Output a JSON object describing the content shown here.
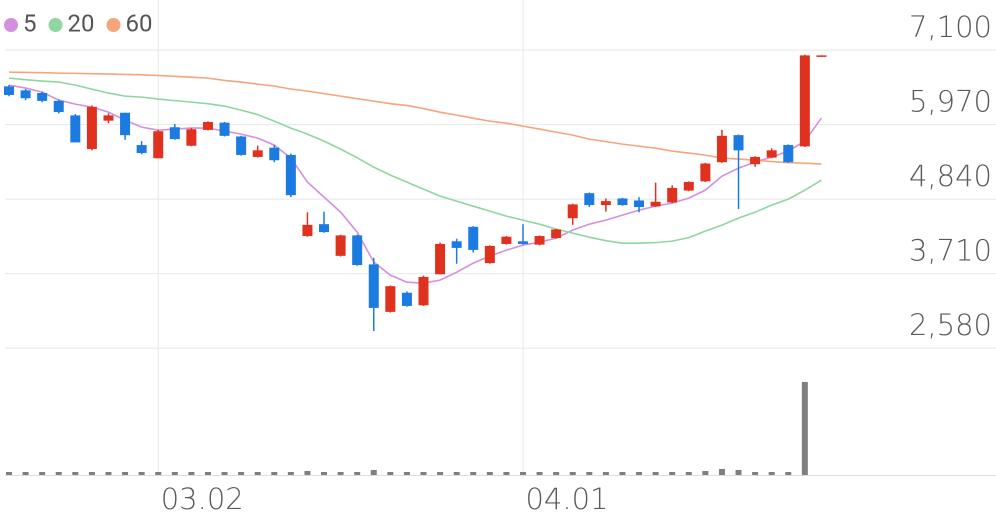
{
  "chart_data": {
    "type": "candlestick",
    "categories": [
      null,
      null,
      null,
      null,
      null,
      null,
      null,
      null,
      null,
      "03.02",
      null,
      null,
      null,
      null,
      null,
      null,
      null,
      null,
      null,
      null,
      null,
      null,
      null,
      null,
      null,
      null,
      null,
      null,
      null,
      null,
      null,
      "04.01",
      null,
      null,
      null,
      null,
      null,
      null,
      null,
      null,
      null,
      null,
      null,
      null,
      null,
      null,
      null,
      null,
      null,
      null
    ],
    "open": [
      6550,
      6490,
      6450,
      6330,
      6110,
      5600,
      6030,
      6150,
      5660,
      5460,
      5930,
      5650,
      5890,
      6000,
      5790,
      5480,
      5620,
      5510,
      4280,
      4460,
      3980,
      4290,
      3850,
      3130,
      3420,
      3230,
      3700,
      4200,
      4420,
      3870,
      4160,
      4200,
      4150,
      4250,
      4550,
      4930,
      4750,
      4850,
      4820,
      4730,
      4790,
      4970,
      5110,
      5400,
      5810,
      5370,
      5470,
      5660,
      5640,
      7010
    ],
    "high": [
      6570,
      6510,
      6470,
      6350,
      6130,
      6260,
      6140,
      6150,
      5720,
      5890,
      5980,
      5920,
      6020,
      6010,
      5800,
      5650,
      5660,
      5530,
      4640,
      4650,
      4300,
      4300,
      3950,
      3530,
      3440,
      3680,
      4180,
      4240,
      4430,
      4140,
      4280,
      4460,
      4290,
      4390,
      4770,
      4940,
      4850,
      4860,
      4870,
      5090,
      5050,
      5110,
      5390,
      5890,
      5820,
      5490,
      5610,
      5670,
      7030,
      7020
    ],
    "low": [
      6400,
      6340,
      6310,
      6140,
      5700,
      5580,
      5990,
      5740,
      5520,
      5460,
      5740,
      5640,
      5880,
      5790,
      5500,
      5470,
      5400,
      4870,
      4270,
      4330,
      3970,
      3830,
      2840,
      3120,
      3210,
      3220,
      3700,
      3860,
      4030,
      3860,
      4150,
      4150,
      4140,
      4240,
      4450,
      4720,
      4650,
      4740,
      4640,
      4720,
      4780,
      4960,
      5100,
      5390,
      4690,
      5330,
      5460,
      5390,
      5630,
      7000
    ],
    "close": [
      6420,
      6370,
      6330,
      6160,
      5700,
      6240,
      6110,
      5810,
      5540,
      5870,
      5750,
      5900,
      6010,
      5800,
      5510,
      5580,
      5430,
      4900,
      4450,
      4340,
      4290,
      3840,
      3190,
      3520,
      3220,
      3660,
      4160,
      4100,
      4070,
      4130,
      4270,
      4160,
      4280,
      4380,
      4760,
      4750,
      4810,
      4750,
      4720,
      4800,
      5010,
      5100,
      5380,
      5800,
      5580,
      5480,
      5580,
      5400,
      7020,
      7020
    ],
    "up_color": "#e0301e",
    "down_color": "#1b7be0",
    "ma": [
      {
        "name": "5",
        "color": "#d48fe0",
        "values": [
          6569,
          6524,
          6463,
          6342,
          6281,
          6235,
          6159,
          6038,
          5932,
          5886,
          5902,
          5917,
          5917,
          5871,
          5826,
          5765,
          5659,
          5462,
          5098,
          4870,
          4643,
          4340,
          3884,
          3687,
          3580,
          3565,
          3611,
          3732,
          3869,
          3975,
          4066,
          4142,
          4187,
          4248,
          4369,
          4460,
          4521,
          4597,
          4673,
          4734,
          4779,
          4855,
          4976,
          5188,
          5310,
          5401,
          5477,
          5568,
          5720,
          6069
        ]
      },
      {
        "name": "20",
        "color": "#8fd6a0",
        "values": [
          6675,
          6652,
          6630,
          6615,
          6569,
          6508,
          6448,
          6402,
          6387,
          6357,
          6334,
          6311,
          6288,
          6250,
          6190,
          6122,
          6023,
          5917,
          5826,
          5720,
          5598,
          5469,
          5325,
          5204,
          5098,
          4991,
          4885,
          4809,
          4733,
          4658,
          4582,
          4521,
          4460,
          4385,
          4324,
          4263,
          4210,
          4172,
          4172,
          4180,
          4203,
          4256,
          4354,
          4445,
          4551,
          4642,
          4749,
          4840,
          4976,
          5128
        ]
      },
      {
        "name": "60",
        "color": "#f4a57c",
        "values": [
          6766,
          6762,
          6757,
          6751,
          6747,
          6742,
          6737,
          6731,
          6725,
          6715,
          6703,
          6690,
          6675,
          6640,
          6615,
          6584,
          6554,
          6510,
          6478,
          6440,
          6402,
          6363,
          6326,
          6288,
          6261,
          6213,
          6159,
          6114,
          6068,
          6023,
          5992,
          5947,
          5902,
          5856,
          5811,
          5750,
          5712,
          5674,
          5644,
          5613,
          5568,
          5538,
          5507,
          5462,
          5447,
          5431,
          5409,
          5393,
          5386,
          5371
        ]
      }
    ],
    "volume": [
      3,
      3,
      3,
      3,
      3,
      3,
      3,
      3,
      3,
      3,
      3,
      3,
      3,
      3,
      3,
      3,
      3,
      3,
      4,
      3,
      3,
      3,
      5,
      3,
      3,
      3,
      3,
      3,
      3,
      3,
      3,
      3,
      3,
      3,
      3,
      3,
      3,
      3,
      3,
      3,
      3,
      3,
      4,
      6,
      5,
      3,
      3,
      3,
      93,
      0
    ],
    "volume_color": "#7f7f7f",
    "ylim": [
      2400,
      7860
    ],
    "yticks": [
      {
        "value": 7100,
        "label": "7,100"
      },
      {
        "value": 5970,
        "label": "5,970"
      },
      {
        "value": 4840,
        "label": "4,840"
      },
      {
        "value": 3710,
        "label": "3,710"
      },
      {
        "value": 2580,
        "label": "2,580"
      }
    ],
    "grid": true
  }
}
